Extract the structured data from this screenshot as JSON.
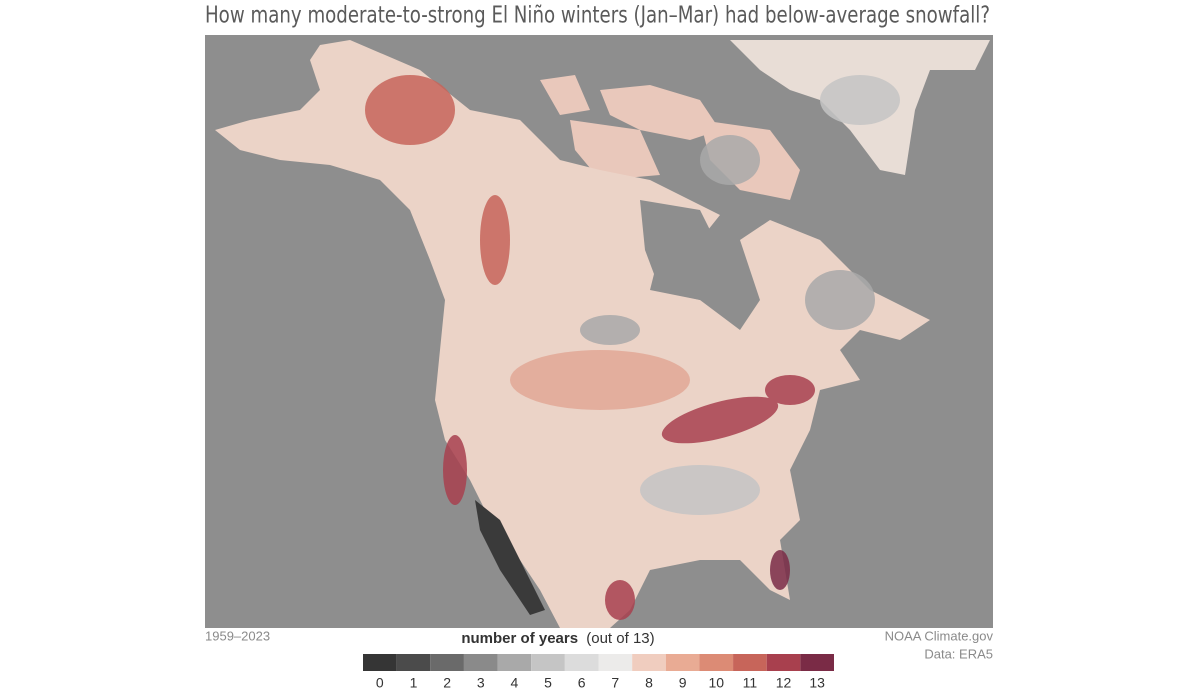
{
  "title": "How many moderate-to-strong El Niño winters (Jan–Mar) had below-average snowfall?",
  "period": "1959–2023",
  "legend": {
    "title": "number of years",
    "subtitle": "(out of 13)",
    "items": [
      {
        "value": 0,
        "color": "#353535"
      },
      {
        "value": 1,
        "color": "#4b4b4b"
      },
      {
        "value": 2,
        "color": "#6a6a6a"
      },
      {
        "value": 3,
        "color": "#8a8a8a"
      },
      {
        "value": 4,
        "color": "#a9a9a9"
      },
      {
        "value": 5,
        "color": "#c5c5c5"
      },
      {
        "value": 6,
        "color": "#dcdcdc"
      },
      {
        "value": 7,
        "color": "#ecebea"
      },
      {
        "value": 8,
        "color": "#f0cdbf"
      },
      {
        "value": 9,
        "color": "#e9ab94"
      },
      {
        "value": 10,
        "color": "#dc8b75"
      },
      {
        "value": 11,
        "color": "#c7655a"
      },
      {
        "value": 12,
        "color": "#a8404e"
      },
      {
        "value": 13,
        "color": "#7a2b46"
      }
    ]
  },
  "credit": "NOAA Climate.gov",
  "source": "Data: ERA5"
}
